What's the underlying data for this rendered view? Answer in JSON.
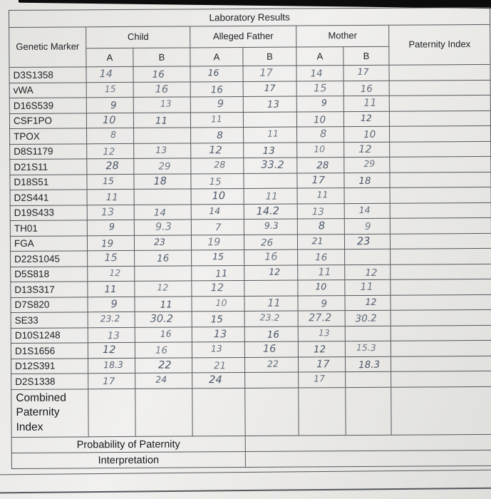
{
  "title": "Laboratory Results",
  "colors": {
    "handwriting_ink": "#3e4b5f",
    "grid_line": "#55585e",
    "paper": "#ededeb"
  },
  "header": {
    "genetic_marker": "Genetic Marker",
    "child": "Child",
    "alleged_father": "Alleged Father",
    "mother": "Mother",
    "paternity_index": "Paternity Index",
    "allele_a": "A",
    "allele_b": "B"
  },
  "rows": [
    {
      "marker": "D3S1358",
      "child_a": "14",
      "child_b": "16",
      "father_a": "16",
      "father_b": "17",
      "mother_a": "14",
      "mother_b": "17",
      "pi": ""
    },
    {
      "marker": "vWA",
      "child_a": "15",
      "child_b": "16",
      "father_a": "16",
      "father_b": "17",
      "mother_a": "15",
      "mother_b": "16",
      "pi": ""
    },
    {
      "marker": "D16S539",
      "child_a": "9",
      "child_b": "13",
      "father_a": "9",
      "father_b": "13",
      "mother_a": "9",
      "mother_b": "11",
      "pi": ""
    },
    {
      "marker": "CSF1PO",
      "child_a": "10",
      "child_b": "11",
      "father_a": "11",
      "father_b": "",
      "mother_a": "10",
      "mother_b": "12",
      "pi": ""
    },
    {
      "marker": "TPOX",
      "child_a": "8",
      "child_b": "",
      "father_a": "8",
      "father_b": "11",
      "mother_a": "8",
      "mother_b": "10",
      "pi": ""
    },
    {
      "marker": "D8S1179",
      "child_a": "12",
      "child_b": "13",
      "father_a": "12",
      "father_b": "13",
      "mother_a": "10",
      "mother_b": "12",
      "pi": ""
    },
    {
      "marker": "D21S11",
      "child_a": "28",
      "child_b": "29",
      "father_a": "28",
      "father_b": "33.2",
      "mother_a": "28",
      "mother_b": "29",
      "pi": ""
    },
    {
      "marker": "D18S51",
      "child_a": "15",
      "child_b": "18",
      "father_a": "15",
      "father_b": "",
      "mother_a": "17",
      "mother_b": "18",
      "pi": ""
    },
    {
      "marker": "D2S441",
      "child_a": "11",
      "child_b": "",
      "father_a": "10",
      "father_b": "11",
      "mother_a": "11",
      "mother_b": "",
      "pi": ""
    },
    {
      "marker": "D19S433",
      "child_a": "13",
      "child_b": "14",
      "father_a": "14",
      "father_b": "14.2",
      "mother_a": "13",
      "mother_b": "14",
      "pi": ""
    },
    {
      "marker": "TH01",
      "child_a": "9",
      "child_b": "9.3",
      "father_a": "7",
      "father_b": "9.3",
      "mother_a": "8",
      "mother_b": "9",
      "pi": ""
    },
    {
      "marker": "FGA",
      "child_a": "19",
      "child_b": "23",
      "father_a": "19",
      "father_b": "26",
      "mother_a": "21",
      "mother_b": "23",
      "pi": ""
    },
    {
      "marker": "D22S1045",
      "child_a": "15",
      "child_b": "16",
      "father_a": "15",
      "father_b": "16",
      "mother_a": "16",
      "mother_b": "",
      "pi": ""
    },
    {
      "marker": "D5S818",
      "child_a": "12",
      "child_b": "",
      "father_a": "11",
      "father_b": "12",
      "mother_a": "11",
      "mother_b": "12",
      "pi": ""
    },
    {
      "marker": "D13S317",
      "child_a": "11",
      "child_b": "12",
      "father_a": "12",
      "father_b": "",
      "mother_a": "10",
      "mother_b": "11",
      "pi": ""
    },
    {
      "marker": "D7S820",
      "child_a": "9",
      "child_b": "11",
      "father_a": "10",
      "father_b": "11",
      "mother_a": "9",
      "mother_b": "12",
      "pi": ""
    },
    {
      "marker": "SE33",
      "child_a": "23.2",
      "child_b": "30.2",
      "father_a": "15",
      "father_b": "23.2",
      "mother_a": "27.2",
      "mother_b": "30.2",
      "pi": ""
    },
    {
      "marker": "D10S1248",
      "child_a": "13",
      "child_b": "16",
      "father_a": "13",
      "father_b": "16",
      "mother_a": "13",
      "mother_b": "",
      "pi": ""
    },
    {
      "marker": "D1S1656",
      "child_a": "12",
      "child_b": "16",
      "father_a": "13",
      "father_b": "16",
      "mother_a": "12",
      "mother_b": "15.3",
      "pi": ""
    },
    {
      "marker": "D12S391",
      "child_a": "18.3",
      "child_b": "22",
      "father_a": "21",
      "father_b": "22",
      "mother_a": "17",
      "mother_b": "18.3",
      "pi": ""
    },
    {
      "marker": "D2S1338",
      "child_a": "17",
      "child_b": "24",
      "father_a": "24",
      "father_b": "",
      "mother_a": "17",
      "mother_b": "",
      "pi": ""
    }
  ],
  "footer": {
    "combined_paternity_index": "Combined Paternity Index",
    "probability_of_paternity": "Probability of Paternity",
    "interpretation": "Interpretation"
  }
}
